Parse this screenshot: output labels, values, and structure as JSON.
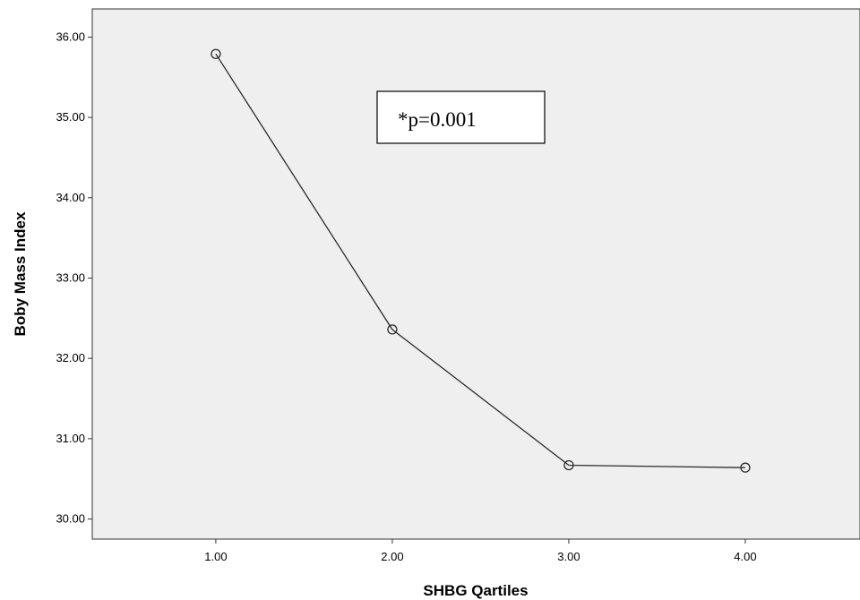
{
  "chart_data": {
    "type": "line",
    "xlabel": "SHBG Qartiles",
    "ylabel": "Boby Mass Index",
    "xlim": [
      0.3,
      4.65
    ],
    "ylim": [
      29.75,
      36.35
    ],
    "x_ticks": [
      1.0,
      2.0,
      3.0,
      4.0
    ],
    "x_tick_labels": [
      "1.00",
      "2.00",
      "3.00",
      "4.00"
    ],
    "y_ticks": [
      30.0,
      31.0,
      32.0,
      33.0,
      34.0,
      35.0,
      36.0
    ],
    "y_tick_labels": [
      "30.00",
      "31.00",
      "32.00",
      "33.00",
      "34.00",
      "35.00",
      "36.00"
    ],
    "grid": false,
    "series": [
      {
        "x": [
          1.0,
          2.0,
          3.0,
          4.0
        ],
        "values": [
          35.79,
          32.36,
          30.67,
          30.64
        ]
      }
    ],
    "annotations": [
      {
        "text": "*p=0.001"
      }
    ],
    "colors": {
      "plot_background": "#efefef",
      "line": "#2b2b2b",
      "marker_edge": "#2b2b2b",
      "axis": "#333333"
    }
  }
}
